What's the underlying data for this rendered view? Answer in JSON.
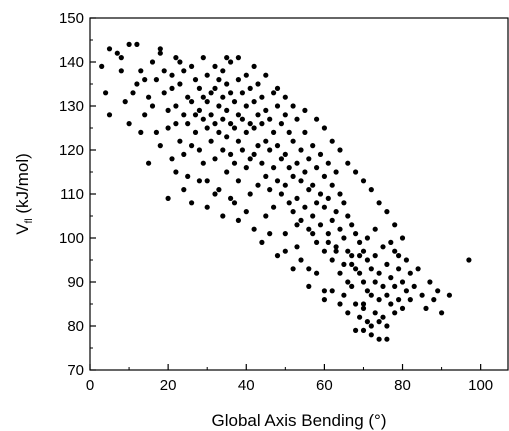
{
  "chart_data": {
    "type": "scatter",
    "xlabel": "Global Axis Bending (°)",
    "ylabel_main": "V",
    "ylabel_sub": "fl",
    "ylabel_rest": " (kJ/mol)",
    "xlim": [
      0,
      107
    ],
    "ylim": [
      70,
      150
    ],
    "xticks": [
      0,
      20,
      40,
      60,
      80,
      100
    ],
    "yticks": [
      70,
      80,
      90,
      100,
      110,
      120,
      130,
      140,
      150
    ],
    "grid": false,
    "legend": "none",
    "marker_color": "#000000",
    "points": [
      [
        3,
        139
      ],
      [
        5,
        128
      ],
      [
        5,
        143
      ],
      [
        7,
        142
      ],
      [
        8,
        141
      ],
      [
        9,
        131
      ],
      [
        10,
        144
      ],
      [
        11,
        133
      ],
      [
        12,
        135
      ],
      [
        12,
        144
      ],
      [
        13,
        138
      ],
      [
        14,
        136
      ],
      [
        14,
        128
      ],
      [
        15,
        132
      ],
      [
        16,
        140
      ],
      [
        16,
        130
      ],
      [
        17,
        136
      ],
      [
        17,
        124
      ],
      [
        18,
        142
      ],
      [
        18,
        143
      ],
      [
        19,
        138
      ],
      [
        19,
        133
      ],
      [
        20,
        129
      ],
      [
        20,
        125
      ],
      [
        21,
        137
      ],
      [
        21,
        134
      ],
      [
        21,
        118
      ],
      [
        22,
        141
      ],
      [
        22,
        130
      ],
      [
        22,
        126
      ],
      [
        23,
        140
      ],
      [
        23,
        135
      ],
      [
        23,
        122
      ],
      [
        24,
        138
      ],
      [
        24,
        128
      ],
      [
        24,
        119
      ],
      [
        25,
        132
      ],
      [
        25,
        126
      ],
      [
        25,
        114
      ],
      [
        26,
        139
      ],
      [
        26,
        131
      ],
      [
        26,
        121
      ],
      [
        27,
        136
      ],
      [
        27,
        128
      ],
      [
        27,
        124
      ],
      [
        28,
        134
      ],
      [
        28,
        129
      ],
      [
        28,
        120
      ],
      [
        29,
        141
      ],
      [
        29,
        132
      ],
      [
        29,
        127
      ],
      [
        29,
        117
      ],
      [
        30,
        137
      ],
      [
        30,
        131
      ],
      [
        30,
        125
      ],
      [
        30,
        113
      ],
      [
        31,
        133
      ],
      [
        31,
        128
      ],
      [
        31,
        122
      ],
      [
        32,
        139
      ],
      [
        32,
        134
      ],
      [
        32,
        126
      ],
      [
        32,
        118
      ],
      [
        33,
        136
      ],
      [
        33,
        130
      ],
      [
        33,
        124
      ],
      [
        33,
        111
      ],
      [
        34,
        138
      ],
      [
        34,
        132
      ],
      [
        34,
        127
      ],
      [
        34,
        120
      ],
      [
        35,
        135
      ],
      [
        35,
        129
      ],
      [
        35,
        123
      ],
      [
        35,
        115
      ],
      [
        36,
        140
      ],
      [
        36,
        133
      ],
      [
        36,
        126
      ],
      [
        36,
        119
      ],
      [
        37,
        131
      ],
      [
        37,
        125
      ],
      [
        37,
        117
      ],
      [
        37,
        108
      ],
      [
        38,
        136
      ],
      [
        38,
        128
      ],
      [
        38,
        122
      ],
      [
        38,
        113
      ],
      [
        39,
        133
      ],
      [
        39,
        127
      ],
      [
        39,
        120
      ],
      [
        40,
        137
      ],
      [
        40,
        130
      ],
      [
        40,
        124
      ],
      [
        40,
        116
      ],
      [
        41,
        134
      ],
      [
        41,
        126
      ],
      [
        41,
        118
      ],
      [
        41,
        110
      ],
      [
        42,
        131
      ],
      [
        42,
        125
      ],
      [
        42,
        119
      ],
      [
        43,
        135
      ],
      [
        43,
        128
      ],
      [
        43,
        121
      ],
      [
        43,
        112
      ],
      [
        44,
        132
      ],
      [
        44,
        126
      ],
      [
        44,
        117
      ],
      [
        45,
        129
      ],
      [
        45,
        122
      ],
      [
        45,
        114
      ],
      [
        45,
        105
      ],
      [
        46,
        127
      ],
      [
        46,
        120
      ],
      [
        46,
        111
      ],
      [
        47,
        133
      ],
      [
        47,
        124
      ],
      [
        47,
        116
      ],
      [
        47,
        107
      ],
      [
        48,
        130
      ],
      [
        48,
        121
      ],
      [
        48,
        113
      ],
      [
        49,
        126
      ],
      [
        49,
        118
      ],
      [
        49,
        110
      ],
      [
        50,
        128
      ],
      [
        50,
        119
      ],
      [
        50,
        112
      ],
      [
        50,
        101
      ],
      [
        51,
        124
      ],
      [
        51,
        116
      ],
      [
        51,
        108
      ],
      [
        52,
        122
      ],
      [
        52,
        114
      ],
      [
        52,
        106
      ],
      [
        53,
        127
      ],
      [
        53,
        117
      ],
      [
        53,
        109
      ],
      [
        53,
        98
      ],
      [
        54,
        120
      ],
      [
        54,
        113
      ],
      [
        54,
        104
      ],
      [
        55,
        124
      ],
      [
        55,
        115
      ],
      [
        55,
        107
      ],
      [
        56,
        118
      ],
      [
        56,
        111
      ],
      [
        56,
        102
      ],
      [
        56,
        93
      ],
      [
        57,
        121
      ],
      [
        57,
        112
      ],
      [
        57,
        105
      ],
      [
        58,
        116
      ],
      [
        58,
        108
      ],
      [
        58,
        99
      ],
      [
        59,
        119
      ],
      [
        59,
        110
      ],
      [
        59,
        103
      ],
      [
        60,
        114
      ],
      [
        60,
        107
      ],
      [
        60,
        97
      ],
      [
        60,
        88
      ],
      [
        61,
        117
      ],
      [
        61,
        109
      ],
      [
        61,
        101
      ],
      [
        62,
        112
      ],
      [
        62,
        104
      ],
      [
        62,
        95
      ],
      [
        63,
        115
      ],
      [
        63,
        106
      ],
      [
        63,
        98
      ],
      [
        64,
        110
      ],
      [
        64,
        102
      ],
      [
        64,
        92
      ],
      [
        65,
        108
      ],
      [
        65,
        100
      ],
      [
        65,
        94
      ],
      [
        65,
        87
      ],
      [
        66,
        105
      ],
      [
        66,
        97
      ],
      [
        66,
        90
      ],
      [
        67,
        103
      ],
      [
        67,
        96
      ],
      [
        67,
        89
      ],
      [
        68,
        101
      ],
      [
        68,
        93
      ],
      [
        68,
        85
      ],
      [
        69,
        99
      ],
      [
        69,
        92
      ],
      [
        69,
        82
      ],
      [
        70,
        97
      ],
      [
        70,
        90
      ],
      [
        70,
        84
      ],
      [
        70,
        79
      ],
      [
        71,
        95
      ],
      [
        71,
        88
      ],
      [
        71,
        81
      ],
      [
        72,
        93
      ],
      [
        72,
        87
      ],
      [
        72,
        80
      ],
      [
        73,
        96
      ],
      [
        73,
        90
      ],
      [
        73,
        83
      ],
      [
        74,
        92
      ],
      [
        74,
        86
      ],
      [
        74,
        77
      ],
      [
        75,
        98
      ],
      [
        75,
        89
      ],
      [
        75,
        82
      ],
      [
        76,
        94
      ],
      [
        76,
        87
      ],
      [
        76,
        80
      ],
      [
        77,
        91
      ],
      [
        77,
        85
      ],
      [
        78,
        97
      ],
      [
        78,
        89
      ],
      [
        78,
        83
      ],
      [
        79,
        93
      ],
      [
        79,
        86
      ],
      [
        80,
        90
      ],
      [
        80,
        84
      ],
      [
        81,
        95
      ],
      [
        81,
        88
      ],
      [
        82,
        92
      ],
      [
        82,
        86
      ],
      [
        83,
        89
      ],
      [
        84,
        93
      ],
      [
        85,
        87
      ],
      [
        86,
        84
      ],
      [
        87,
        90
      ],
      [
        88,
        86
      ],
      [
        89,
        88
      ],
      [
        90,
        83
      ],
      [
        92,
        87
      ],
      [
        97,
        95
      ],
      [
        4,
        133
      ],
      [
        8,
        138
      ],
      [
        10,
        126
      ],
      [
        13,
        124
      ],
      [
        15,
        117
      ],
      [
        18,
        121
      ],
      [
        20,
        109
      ],
      [
        22,
        115
      ],
      [
        24,
        111
      ],
      [
        26,
        108
      ],
      [
        28,
        113
      ],
      [
        30,
        107
      ],
      [
        32,
        110
      ],
      [
        34,
        105
      ],
      [
        36,
        109
      ],
      [
        38,
        104
      ],
      [
        40,
        106
      ],
      [
        42,
        102
      ],
      [
        44,
        99
      ],
      [
        46,
        101
      ],
      [
        48,
        96
      ],
      [
        50,
        97
      ],
      [
        52,
        93
      ],
      [
        54,
        95
      ],
      [
        56,
        89
      ],
      [
        58,
        92
      ],
      [
        60,
        86
      ],
      [
        62,
        88
      ],
      [
        64,
        85
      ],
      [
        66,
        83
      ],
      [
        68,
        79
      ],
      [
        70,
        85
      ],
      [
        72,
        78
      ],
      [
        74,
        81
      ],
      [
        76,
        77
      ],
      [
        35,
        141
      ],
      [
        38,
        141
      ],
      [
        42,
        139
      ],
      [
        45,
        137
      ],
      [
        48,
        134
      ],
      [
        50,
        132
      ],
      [
        52,
        130
      ],
      [
        55,
        129
      ],
      [
        58,
        127
      ],
      [
        60,
        125
      ],
      [
        62,
        122
      ],
      [
        64,
        120
      ],
      [
        66,
        117
      ],
      [
        68,
        115
      ],
      [
        70,
        113
      ],
      [
        72,
        111
      ],
      [
        74,
        108
      ],
      [
        76,
        106
      ],
      [
        78,
        103
      ],
      [
        80,
        100
      ],
      [
        53,
        103
      ],
      [
        57,
        101
      ],
      [
        61,
        99
      ],
      [
        63,
        97
      ],
      [
        67,
        94
      ],
      [
        69,
        96
      ],
      [
        71,
        100
      ],
      [
        73,
        102
      ],
      [
        77,
        99
      ],
      [
        79,
        96
      ]
    ]
  }
}
